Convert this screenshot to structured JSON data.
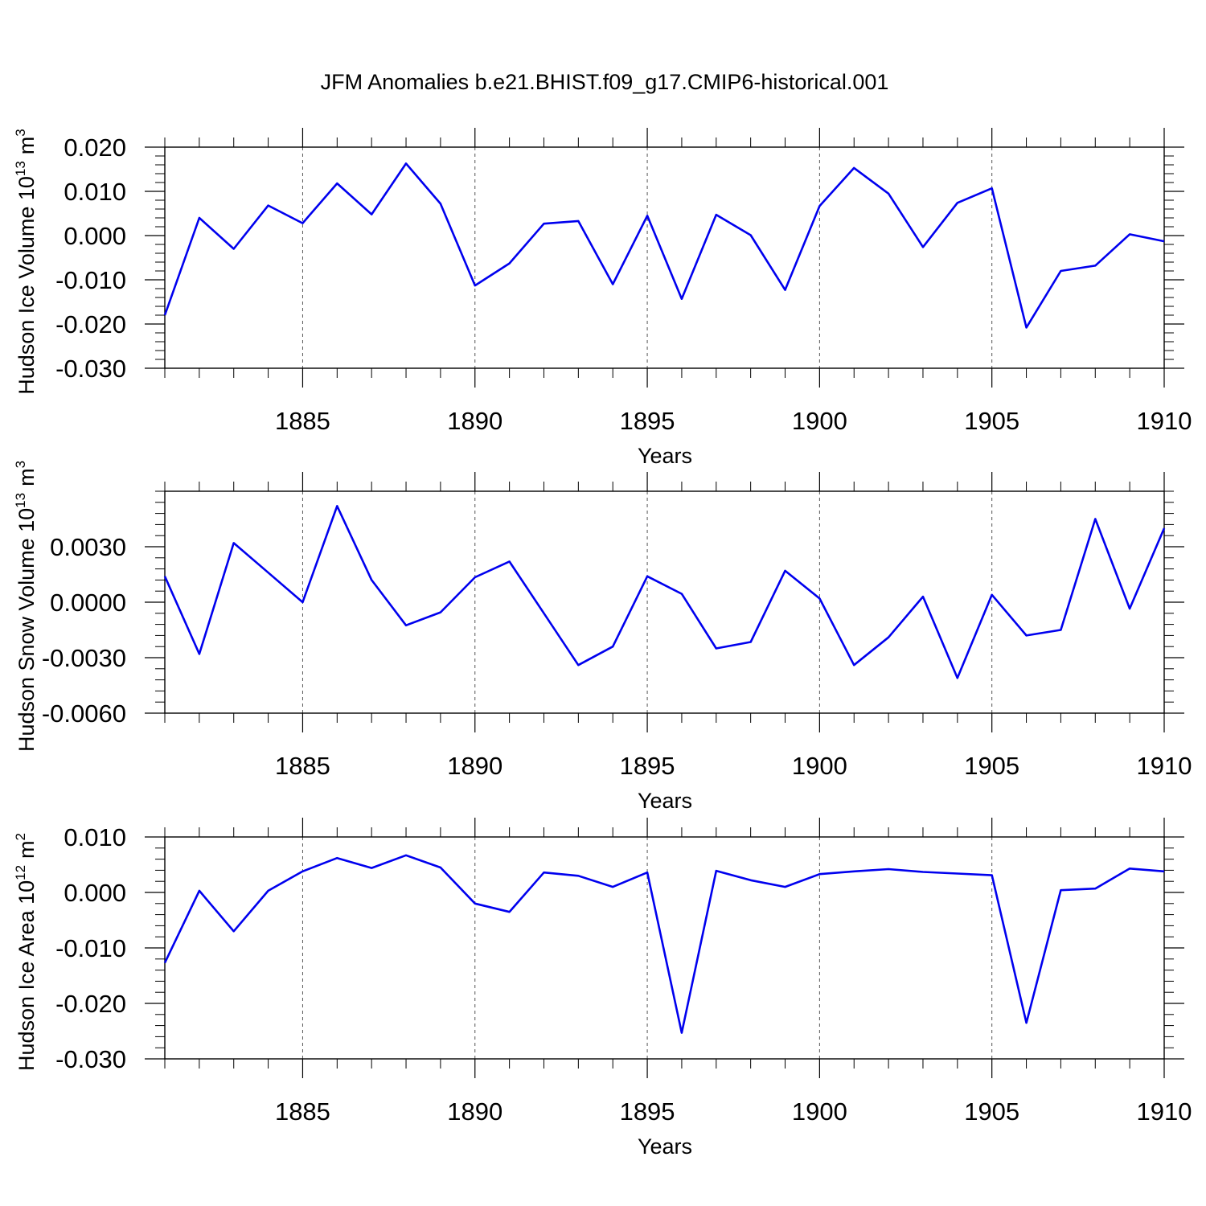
{
  "figure": {
    "title": "JFM Anomalies b.e21.BHIST.f09_g17.CMIP6-historical.001"
  },
  "colors": {
    "line": "#0000ee",
    "axis": "#000000",
    "grid": "#555555"
  },
  "chart_data": [
    {
      "type": "line",
      "ylabel": "Hudson Ice Volume 10",
      "ylabel_sup": "13",
      "ylabel_unit": "m",
      "ylabel_unit_sup": "3",
      "xlabel": "Years",
      "xlim": [
        1881,
        1910
      ],
      "ylim": [
        -0.03,
        0.02
      ],
      "yticks": [
        0.02,
        0.01,
        0.0,
        -0.01,
        -0.02,
        -0.03
      ],
      "ytick_labels": [
        "0.020",
        "0.010",
        "0.000",
        "-0.010",
        "-0.020",
        "-0.030"
      ],
      "xticks": [
        1885,
        1890,
        1895,
        1900,
        1905,
        1910
      ],
      "xtick_labels": [
        "1885",
        "1890",
        "1895",
        "1900",
        "1905",
        "1910"
      ],
      "grid_x": [
        1885,
        1890,
        1895,
        1900,
        1905
      ],
      "x": [
        1881,
        1882,
        1883,
        1884,
        1885,
        1886,
        1887,
        1888,
        1889,
        1890,
        1891,
        1892,
        1893,
        1894,
        1895,
        1896,
        1897,
        1898,
        1899,
        1900,
        1901,
        1902,
        1903,
        1904,
        1905,
        1906,
        1907,
        1908,
        1909,
        1910
      ],
      "series": [
        {
          "name": "Hudson Ice Volume",
          "values": [
            -0.018,
            0.004,
            -0.003,
            0.0068,
            0.0028,
            0.0118,
            0.0048,
            0.0163,
            0.0072,
            -0.0113,
            -0.0063,
            0.0027,
            0.0033,
            -0.011,
            0.0045,
            -0.0143,
            0.0047,
            0.0001,
            -0.0123,
            0.0067,
            0.0153,
            0.0095,
            -0.0026,
            0.0074,
            0.0107,
            -0.0208,
            -0.008,
            -0.0068,
            0.0003,
            -0.0013
          ]
        }
      ]
    },
    {
      "type": "line",
      "ylabel": "Hudson Snow Volume 10",
      "ylabel_sup": "13",
      "ylabel_unit": "m",
      "ylabel_unit_sup": "3",
      "xlabel": "Years",
      "xlim": [
        1881,
        1910
      ],
      "ylim": [
        -0.006,
        0.006
      ],
      "yticks": [
        0.003,
        0.0,
        -0.003,
        -0.006
      ],
      "ytick_labels": [
        "0.0030",
        "0.0000",
        "-0.0030",
        "-0.0060"
      ],
      "xticks": [
        1885,
        1890,
        1895,
        1900,
        1905,
        1910
      ],
      "xtick_labels": [
        "1885",
        "1890",
        "1895",
        "1900",
        "1905",
        "1910"
      ],
      "grid_x": [
        1885,
        1890,
        1895,
        1900,
        1905
      ],
      "x": [
        1881,
        1882,
        1883,
        1884,
        1885,
        1886,
        1887,
        1888,
        1889,
        1890,
        1891,
        1892,
        1893,
        1894,
        1895,
        1896,
        1897,
        1898,
        1899,
        1900,
        1901,
        1902,
        1903,
        1904,
        1905,
        1906,
        1907,
        1908,
        1909,
        1910
      ],
      "series": [
        {
          "name": "Hudson Snow Volume",
          "values": [
            0.0014,
            -0.0028,
            0.0032,
            0.0016,
            0.0,
            0.0052,
            0.0012,
            -0.00125,
            -0.00055,
            0.00135,
            0.0022,
            -0.0006,
            -0.0034,
            -0.0024,
            0.0014,
            0.00045,
            -0.0025,
            -0.00215,
            0.0017,
            0.0002,
            -0.0034,
            -0.0019,
            0.0003,
            -0.0041,
            0.0004,
            -0.0018,
            -0.0015,
            0.0045,
            -0.00035,
            0.004
          ]
        }
      ]
    },
    {
      "type": "line",
      "ylabel": "Hudson Ice Area 10",
      "ylabel_sup": "12",
      "ylabel_unit": "m",
      "ylabel_unit_sup": "2",
      "xlabel": "Years",
      "xlim": [
        1881,
        1910
      ],
      "ylim": [
        -0.03,
        0.01
      ],
      "yticks": [
        0.01,
        0.0,
        -0.01,
        -0.02,
        -0.03
      ],
      "ytick_labels": [
        "0.010",
        "0.000",
        "-0.010",
        "-0.020",
        "-0.030"
      ],
      "xticks": [
        1885,
        1890,
        1895,
        1900,
        1905,
        1910
      ],
      "xtick_labels": [
        "1885",
        "1890",
        "1895",
        "1900",
        "1905",
        "1910"
      ],
      "grid_x": [
        1885,
        1890,
        1895,
        1900,
        1905
      ],
      "x": [
        1881,
        1882,
        1883,
        1884,
        1885,
        1886,
        1887,
        1888,
        1889,
        1890,
        1891,
        1892,
        1893,
        1894,
        1895,
        1896,
        1897,
        1898,
        1899,
        1900,
        1901,
        1902,
        1903,
        1904,
        1905,
        1906,
        1907,
        1908,
        1909,
        1910
      ],
      "series": [
        {
          "name": "Hudson Ice Area",
          "values": [
            -0.0127,
            0.0003,
            -0.007,
            0.0003,
            0.0038,
            0.0062,
            0.0044,
            0.0067,
            0.0045,
            -0.002,
            -0.0035,
            0.0036,
            0.003,
            0.001,
            0.0036,
            -0.0253,
            0.0039,
            0.0022,
            0.001,
            0.0033,
            0.0038,
            0.0042,
            0.0037,
            0.0034,
            0.0031,
            -0.0235,
            0.0004,
            0.0007,
            0.0043,
            0.0038
          ]
        }
      ]
    }
  ]
}
